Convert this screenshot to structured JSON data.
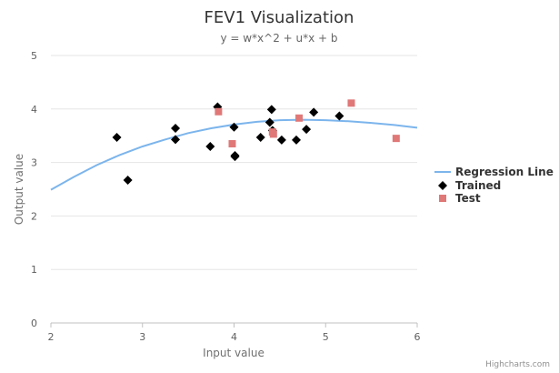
{
  "chart_data": {
    "type": "scatter",
    "title": "FEV1 Visualization",
    "subtitle": "y = w*x^2 + u*x + b",
    "xlabel": "Input value",
    "ylabel": "Output value",
    "xlim": [
      2,
      6
    ],
    "ylim": [
      0,
      5
    ],
    "x_ticks": [
      2,
      3,
      4,
      5,
      6
    ],
    "y_ticks": [
      0,
      1,
      2,
      3,
      4,
      5
    ],
    "grid": "horizontal",
    "legend_position": "right",
    "credits": "Highcharts.com",
    "series": [
      {
        "name": "Regression Line",
        "kind": "line",
        "color": "#7cb5ec",
        "points": [
          [
            2.0,
            2.49
          ],
          [
            2.25,
            2.73
          ],
          [
            2.5,
            2.95
          ],
          [
            2.75,
            3.14
          ],
          [
            3.0,
            3.3
          ],
          [
            3.25,
            3.43
          ],
          [
            3.5,
            3.55
          ],
          [
            3.75,
            3.64
          ],
          [
            4.0,
            3.71
          ],
          [
            4.25,
            3.76
          ],
          [
            4.5,
            3.79
          ],
          [
            4.75,
            3.8
          ],
          [
            5.0,
            3.79
          ],
          [
            5.25,
            3.77
          ],
          [
            5.5,
            3.74
          ],
          [
            5.75,
            3.7
          ],
          [
            6.0,
            3.65
          ]
        ]
      },
      {
        "name": "Trained",
        "kind": "scatter",
        "marker": "diamond",
        "color": "#000000",
        "points": [
          [
            2.72,
            3.47
          ],
          [
            2.84,
            2.67
          ],
          [
            3.36,
            3.64
          ],
          [
            3.36,
            3.43
          ],
          [
            3.74,
            3.3
          ],
          [
            3.82,
            4.04
          ],
          [
            4.0,
            3.66
          ],
          [
            4.01,
            3.13
          ],
          [
            4.01,
            3.11
          ],
          [
            4.29,
            3.47
          ],
          [
            4.39,
            3.75
          ],
          [
            4.41,
            3.99
          ],
          [
            4.42,
            3.6
          ],
          [
            4.52,
            3.42
          ],
          [
            4.68,
            3.42
          ],
          [
            4.79,
            3.62
          ],
          [
            4.87,
            3.94
          ],
          [
            5.15,
            3.87
          ]
        ]
      },
      {
        "name": "Test",
        "kind": "scatter",
        "marker": "square",
        "color": "#e07878",
        "points": [
          [
            3.83,
            3.95
          ],
          [
            3.98,
            3.35
          ],
          [
            4.42,
            3.57
          ],
          [
            4.43,
            3.53
          ],
          [
            4.71,
            3.83
          ],
          [
            5.28,
            4.11
          ],
          [
            5.77,
            3.45
          ]
        ]
      }
    ]
  }
}
